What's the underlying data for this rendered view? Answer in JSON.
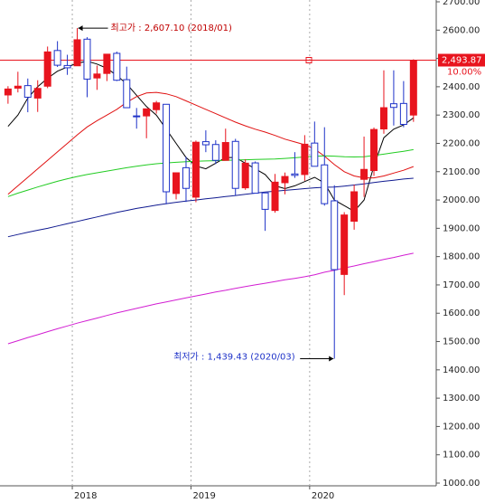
{
  "chart_data": {
    "type": "candlestick",
    "categories": [
      null,
      null,
      null,
      null,
      null,
      null,
      null,
      "2018",
      null,
      null,
      null,
      null,
      null,
      null,
      null,
      null,
      null,
      null,
      null,
      "2019",
      null,
      null,
      null,
      null,
      null,
      null,
      null,
      null,
      null,
      null,
      null,
      "2020",
      null,
      null,
      null,
      null,
      null,
      null,
      null,
      null,
      null,
      null
    ],
    "open": [
      2371,
      2395,
      2404,
      2360,
      2402,
      2528,
      2475,
      2474,
      2568,
      2431,
      2447,
      2518,
      2425,
      2297,
      2297,
      2319,
      2338,
      2023,
      2114,
      2010,
      2206,
      2196,
      2140,
      2207,
      2043,
      2131,
      2025,
      1963,
      2061,
      2092,
      2090,
      2201,
      2124,
      1997,
      1737,
      1925,
      2073,
      2104,
      2251,
      2340,
      2341,
      2300
    ],
    "high": [
      2402,
      2453,
      2429,
      2423,
      2542,
      2561,
      2513,
      2607.1,
      2575,
      2475,
      2515,
      2524,
      2471,
      2325,
      2323,
      2350,
      2338,
      2097,
      2153,
      2210,
      2246,
      2211,
      2252,
      2216,
      2144,
      2136,
      2025,
      2092,
      2097,
      2169,
      2229,
      2277,
      2257,
      2052,
      1957,
      2054,
      2224,
      2256,
      2458,
      2458,
      2420,
      2497
    ],
    "low": [
      2340,
      2380,
      2310,
      2311,
      2395,
      2470,
      2442,
      2475,
      2363,
      2389,
      2420,
      2420,
      2326,
      2252,
      2218,
      2305,
      1985,
      2002,
      1993,
      1992,
      2169,
      2127,
      2140,
      2016,
      2036,
      2024,
      1891,
      1955,
      2020,
      2078,
      2068,
      2119,
      1980,
      1439.43,
      1664,
      1895,
      2011,
      2085,
      2234,
      2263,
      2257,
      2276
    ],
    "close": [
      2392,
      2402,
      2363,
      2394,
      2523,
      2476,
      2467,
      2566,
      2427,
      2445,
      2515,
      2423,
      2326,
      2295,
      2322,
      2343,
      2029,
      2096,
      2041,
      2204,
      2195,
      2140,
      2203,
      2041,
      2130,
      2024,
      1967,
      2063,
      2083,
      2087,
      2197,
      2119,
      1987,
      1754,
      1947,
      2029,
      2108,
      2249,
      2326,
      2327,
      2267,
      2493.87
    ],
    "up_color": "#e8141e",
    "down_color": "#1e32c8",
    "series": [
      {
        "color": "#000000",
        "values": [
          2260,
          2300,
          2360,
          2400,
          2430,
          2455,
          2470,
          2483,
          2490,
          2480,
          2465,
          2440,
          2410,
          2370,
          2330,
          2300,
          2250,
          2200,
          2150,
          2120,
          2110,
          2130,
          2150,
          2150,
          2130,
          2110,
          2090,
          2050,
          2040,
          2050,
          2065,
          2080,
          2060,
          2000,
          1980,
          1960,
          2000,
          2120,
          2220,
          2250,
          2265,
          2290
        ]
      },
      {
        "color": "#e01010",
        "values": [
          2020,
          2050,
          2080,
          2110,
          2140,
          2170,
          2200,
          2230,
          2258,
          2280,
          2300,
          2320,
          2345,
          2365,
          2378,
          2380,
          2375,
          2365,
          2350,
          2335,
          2320,
          2305,
          2290,
          2275,
          2262,
          2250,
          2240,
          2228,
          2215,
          2205,
          2195,
          2180,
          2155,
          2125,
          2100,
          2085,
          2078,
          2078,
          2085,
          2095,
          2105,
          2118
        ]
      },
      {
        "color": "#22cc22",
        "values": [
          2012,
          2024,
          2035,
          2046,
          2056,
          2066,
          2075,
          2083,
          2090,
          2096,
          2102,
          2108,
          2114,
          2119,
          2124,
          2128,
          2131,
          2133,
          2135,
          2137,
          2138,
          2139,
          2140,
          2141,
          2142,
          2143,
          2144,
          2145,
          2147,
          2149,
          2152,
          2154,
          2156,
          2155,
          2153,
          2152,
          2153,
          2157,
          2162,
          2167,
          2172,
          2178
        ]
      },
      {
        "color": "#101a90",
        "values": [
          1870,
          1878,
          1886,
          1893,
          1900,
          1908,
          1916,
          1924,
          1932,
          1940,
          1948,
          1956,
          1963,
          1970,
          1976,
          1982,
          1987,
          1992,
          1996,
          2000,
          2004,
          2008,
          2012,
          2016,
          2020,
          2024,
          2028,
          2031,
          2034,
          2037,
          2040,
          2043,
          2045,
          2046,
          2049,
          2053,
          2057,
          2062,
          2066,
          2070,
          2074,
          2077
        ]
      },
      {
        "color": "#d21ed2",
        "values": [
          1492,
          1503,
          1514,
          1524,
          1535,
          1545,
          1555,
          1565,
          1574,
          1583,
          1592,
          1601,
          1609,
          1617,
          1625,
          1633,
          1640,
          1647,
          1654,
          1661,
          1668,
          1675,
          1681,
          1688,
          1694,
          1700,
          1706,
          1712,
          1718,
          1723,
          1729,
          1736,
          1745,
          1752,
          1760,
          1767,
          1775,
          1782,
          1790,
          1797,
          1805,
          1812
        ]
      }
    ],
    "ylim": [
      1000,
      2700
    ],
    "yticks": [
      {
        "value": 1000,
        "label": "1000.00"
      },
      {
        "value": 1100,
        "label": "1100.00"
      },
      {
        "value": 1200,
        "label": "1200.00"
      },
      {
        "value": 1300,
        "label": "1300.00"
      },
      {
        "value": 1400,
        "label": "1400.00"
      },
      {
        "value": 1500,
        "label": "1500.00"
      },
      {
        "value": 1600,
        "label": "1600.00"
      },
      {
        "value": 1700,
        "label": "1700.00"
      },
      {
        "value": 1800,
        "label": "1800.00"
      },
      {
        "value": 1900,
        "label": "1900.00"
      },
      {
        "value": 2000,
        "label": "2000.00"
      },
      {
        "value": 2100,
        "label": "2100.00"
      },
      {
        "value": 2200,
        "label": "2200.00"
      },
      {
        "value": 2300,
        "label": "2300.00"
      },
      {
        "value": 2400,
        "label": "2400.00"
      },
      {
        "value": 2500,
        "label": "2500.00"
      },
      {
        "value": 2600,
        "label": "2600.00"
      },
      {
        "value": 2700,
        "label": "2700.00"
      }
    ],
    "last_price": {
      "value": 2493.87,
      "label": "2,493.87"
    },
    "change_label": "10.00%",
    "annotations": [
      {
        "text": "최고가 : 2,607.10 (2018/01)",
        "value": 2607.1,
        "color": "#c00000"
      },
      {
        "text": "최저가 : 1,439.43 (2020/03)",
        "value": 1439.43,
        "color": "#1e32c8"
      }
    ]
  }
}
